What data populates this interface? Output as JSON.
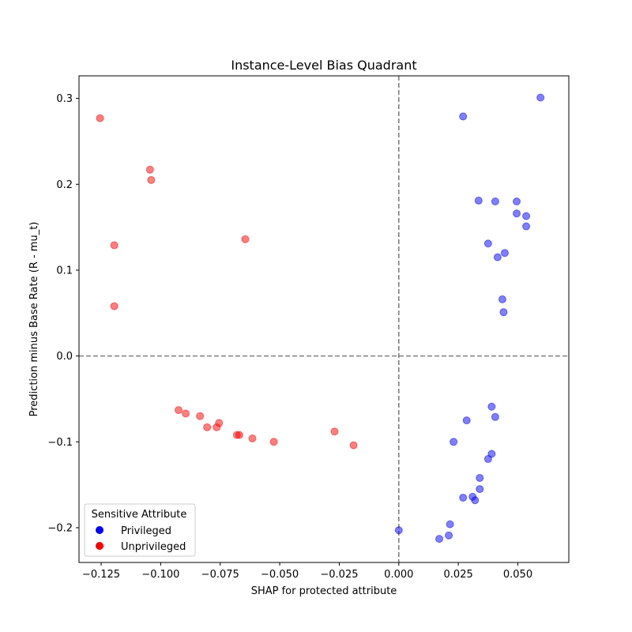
{
  "chart_data": {
    "type": "scatter",
    "title": "Instance-Level Bias Quadrant",
    "xlabel": "SHAP for protected attribute",
    "ylabel": "Prediction minus Base Rate (R - mu_t)",
    "xlim": [
      -0.1343,
      0.0714
    ],
    "ylim": [
      -0.2405,
      0.3263
    ],
    "x_ticks": [
      -0.125,
      -0.1,
      -0.075,
      -0.05,
      -0.025,
      0.0,
      0.025,
      0.05
    ],
    "x_tick_labels": [
      "−0.125",
      "−0.100",
      "−0.075",
      "−0.050",
      "−0.025",
      "0.000",
      "0.025",
      "0.050"
    ],
    "y_ticks": [
      -0.2,
      -0.1,
      0.0,
      0.1,
      0.2,
      0.3
    ],
    "y_tick_labels": [
      "−0.2",
      "−0.1",
      "0.0",
      "0.1",
      "0.2",
      "0.3"
    ],
    "reference_lines": {
      "x": 0.0,
      "y": 0.0,
      "style": "dashed",
      "color": "#808080"
    },
    "grid": false,
    "legend": {
      "title": "Sensitive Attribute",
      "position": "lower-left",
      "entries": [
        {
          "label": "Privileged",
          "color": "#0000ff"
        },
        {
          "label": "Unprivileged",
          "color": "#ff0000"
        }
      ]
    },
    "series": [
      {
        "name": "Privileged",
        "color": "#0000ff",
        "points": [
          [
            0.0595,
            0.301
          ],
          [
            0.027,
            0.279
          ],
          [
            0.0335,
            0.181
          ],
          [
            0.0405,
            0.18
          ],
          [
            0.0495,
            0.18
          ],
          [
            0.0495,
            0.166
          ],
          [
            0.0535,
            0.163
          ],
          [
            0.0535,
            0.151
          ],
          [
            0.0375,
            0.131
          ],
          [
            0.0445,
            0.12
          ],
          [
            0.0415,
            0.115
          ],
          [
            0.0435,
            0.066
          ],
          [
            0.044,
            0.051
          ],
          [
            0.039,
            -0.059
          ],
          [
            0.0405,
            -0.071
          ],
          [
            0.0285,
            -0.075
          ],
          [
            0.023,
            -0.1
          ],
          [
            0.039,
            -0.114
          ],
          [
            0.0375,
            -0.12
          ],
          [
            0.034,
            -0.142
          ],
          [
            0.034,
            -0.155
          ],
          [
            0.031,
            -0.164
          ],
          [
            0.032,
            -0.168
          ],
          [
            0.027,
            -0.165
          ],
          [
            0.0215,
            -0.196
          ],
          [
            0.021,
            -0.209
          ],
          [
            0.017,
            -0.213
          ],
          [
            0.0,
            -0.203
          ]
        ]
      },
      {
        "name": "Unprivileged",
        "color": "#ff0000",
        "points": [
          [
            -0.1255,
            0.277
          ],
          [
            -0.1045,
            0.217
          ],
          [
            -0.104,
            0.205
          ],
          [
            -0.1195,
            0.129
          ],
          [
            -0.0645,
            0.136
          ],
          [
            -0.1195,
            0.058
          ],
          [
            -0.0925,
            -0.063
          ],
          [
            -0.0895,
            -0.067
          ],
          [
            -0.0835,
            -0.07
          ],
          [
            -0.0755,
            -0.078
          ],
          [
            -0.0805,
            -0.083
          ],
          [
            -0.0765,
            -0.083
          ],
          [
            -0.068,
            -0.092
          ],
          [
            -0.067,
            -0.092
          ],
          [
            -0.0615,
            -0.096
          ],
          [
            -0.0525,
            -0.1
          ],
          [
            -0.027,
            -0.088
          ],
          [
            -0.019,
            -0.104
          ]
        ]
      }
    ]
  }
}
